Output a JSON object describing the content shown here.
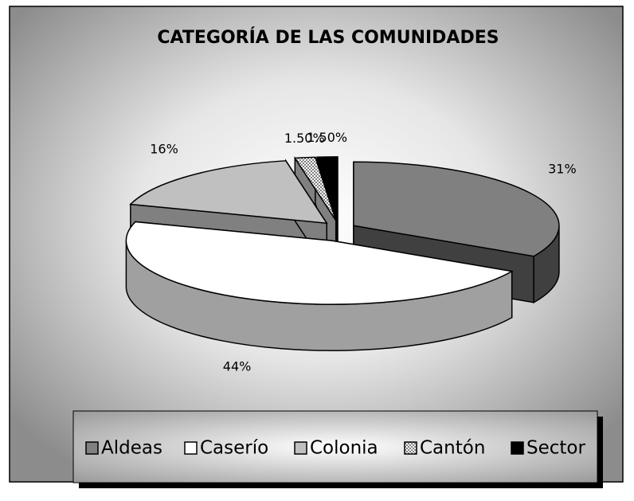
{
  "chart_data": {
    "type": "pie",
    "title": "CATEGORÍA DE LAS COMUNIDADES",
    "categories": [
      "Aldeas",
      "Caserío",
      "Colonia",
      "Cantón",
      "Sector"
    ],
    "values": [
      31,
      44,
      16,
      1.5,
      1.5
    ],
    "value_labels": [
      "31%",
      "44%",
      "16%",
      "1.50%",
      "1.50%"
    ],
    "colors": [
      "#808080",
      "#ffffff",
      "#c0c0c0",
      "url(#hatch)",
      "#000000"
    ],
    "legend": "bottom"
  }
}
